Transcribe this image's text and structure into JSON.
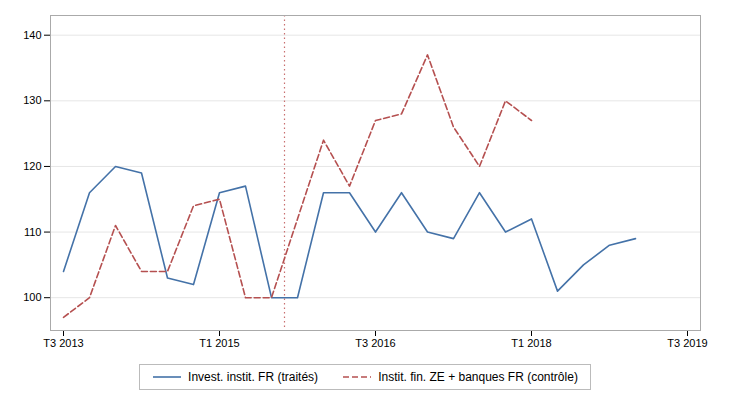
{
  "chart_data": {
    "type": "line",
    "x": [
      0,
      1,
      2,
      3,
      4,
      5,
      6,
      7,
      8,
      9,
      10,
      11,
      12,
      13,
      14,
      15,
      16,
      17,
      18,
      19,
      20,
      21,
      22
    ],
    "series": [
      {
        "name": "Invest. instit. FR (traités)",
        "color": "#4472A8",
        "line_style": "solid",
        "values": [
          104,
          116,
          120,
          119,
          103,
          102,
          116,
          117,
          100,
          100,
          116,
          116,
          110,
          116,
          110,
          109,
          116,
          110,
          112,
          101,
          105,
          108,
          109
        ]
      },
      {
        "name": "Instit. fin. ZE + banques FR (contrôle)",
        "color": "#B55050",
        "line_style": "dashed",
        "values": [
          97,
          100,
          111,
          104,
          104,
          114,
          115,
          100,
          100,
          112,
          124,
          117,
          127,
          128,
          137,
          126,
          120,
          130,
          127,
          null,
          null,
          null,
          null
        ]
      }
    ],
    "xlim": [
      -0.5,
      24.5
    ],
    "xticks": [
      {
        "value": 0,
        "label": "T3 2013"
      },
      {
        "value": 6,
        "label": "T1 2015"
      },
      {
        "value": 12,
        "label": "T3 2016"
      },
      {
        "value": 18,
        "label": "T1 2018"
      },
      {
        "value": 24,
        "label": "T3 2019"
      }
    ],
    "ylim": [
      95,
      143
    ],
    "yticks": [
      100,
      110,
      120,
      130,
      140
    ],
    "vline": {
      "x": 8.5,
      "color": "#C87070",
      "line_style": "dotted"
    },
    "grid": true,
    "legend": "bottom"
  }
}
